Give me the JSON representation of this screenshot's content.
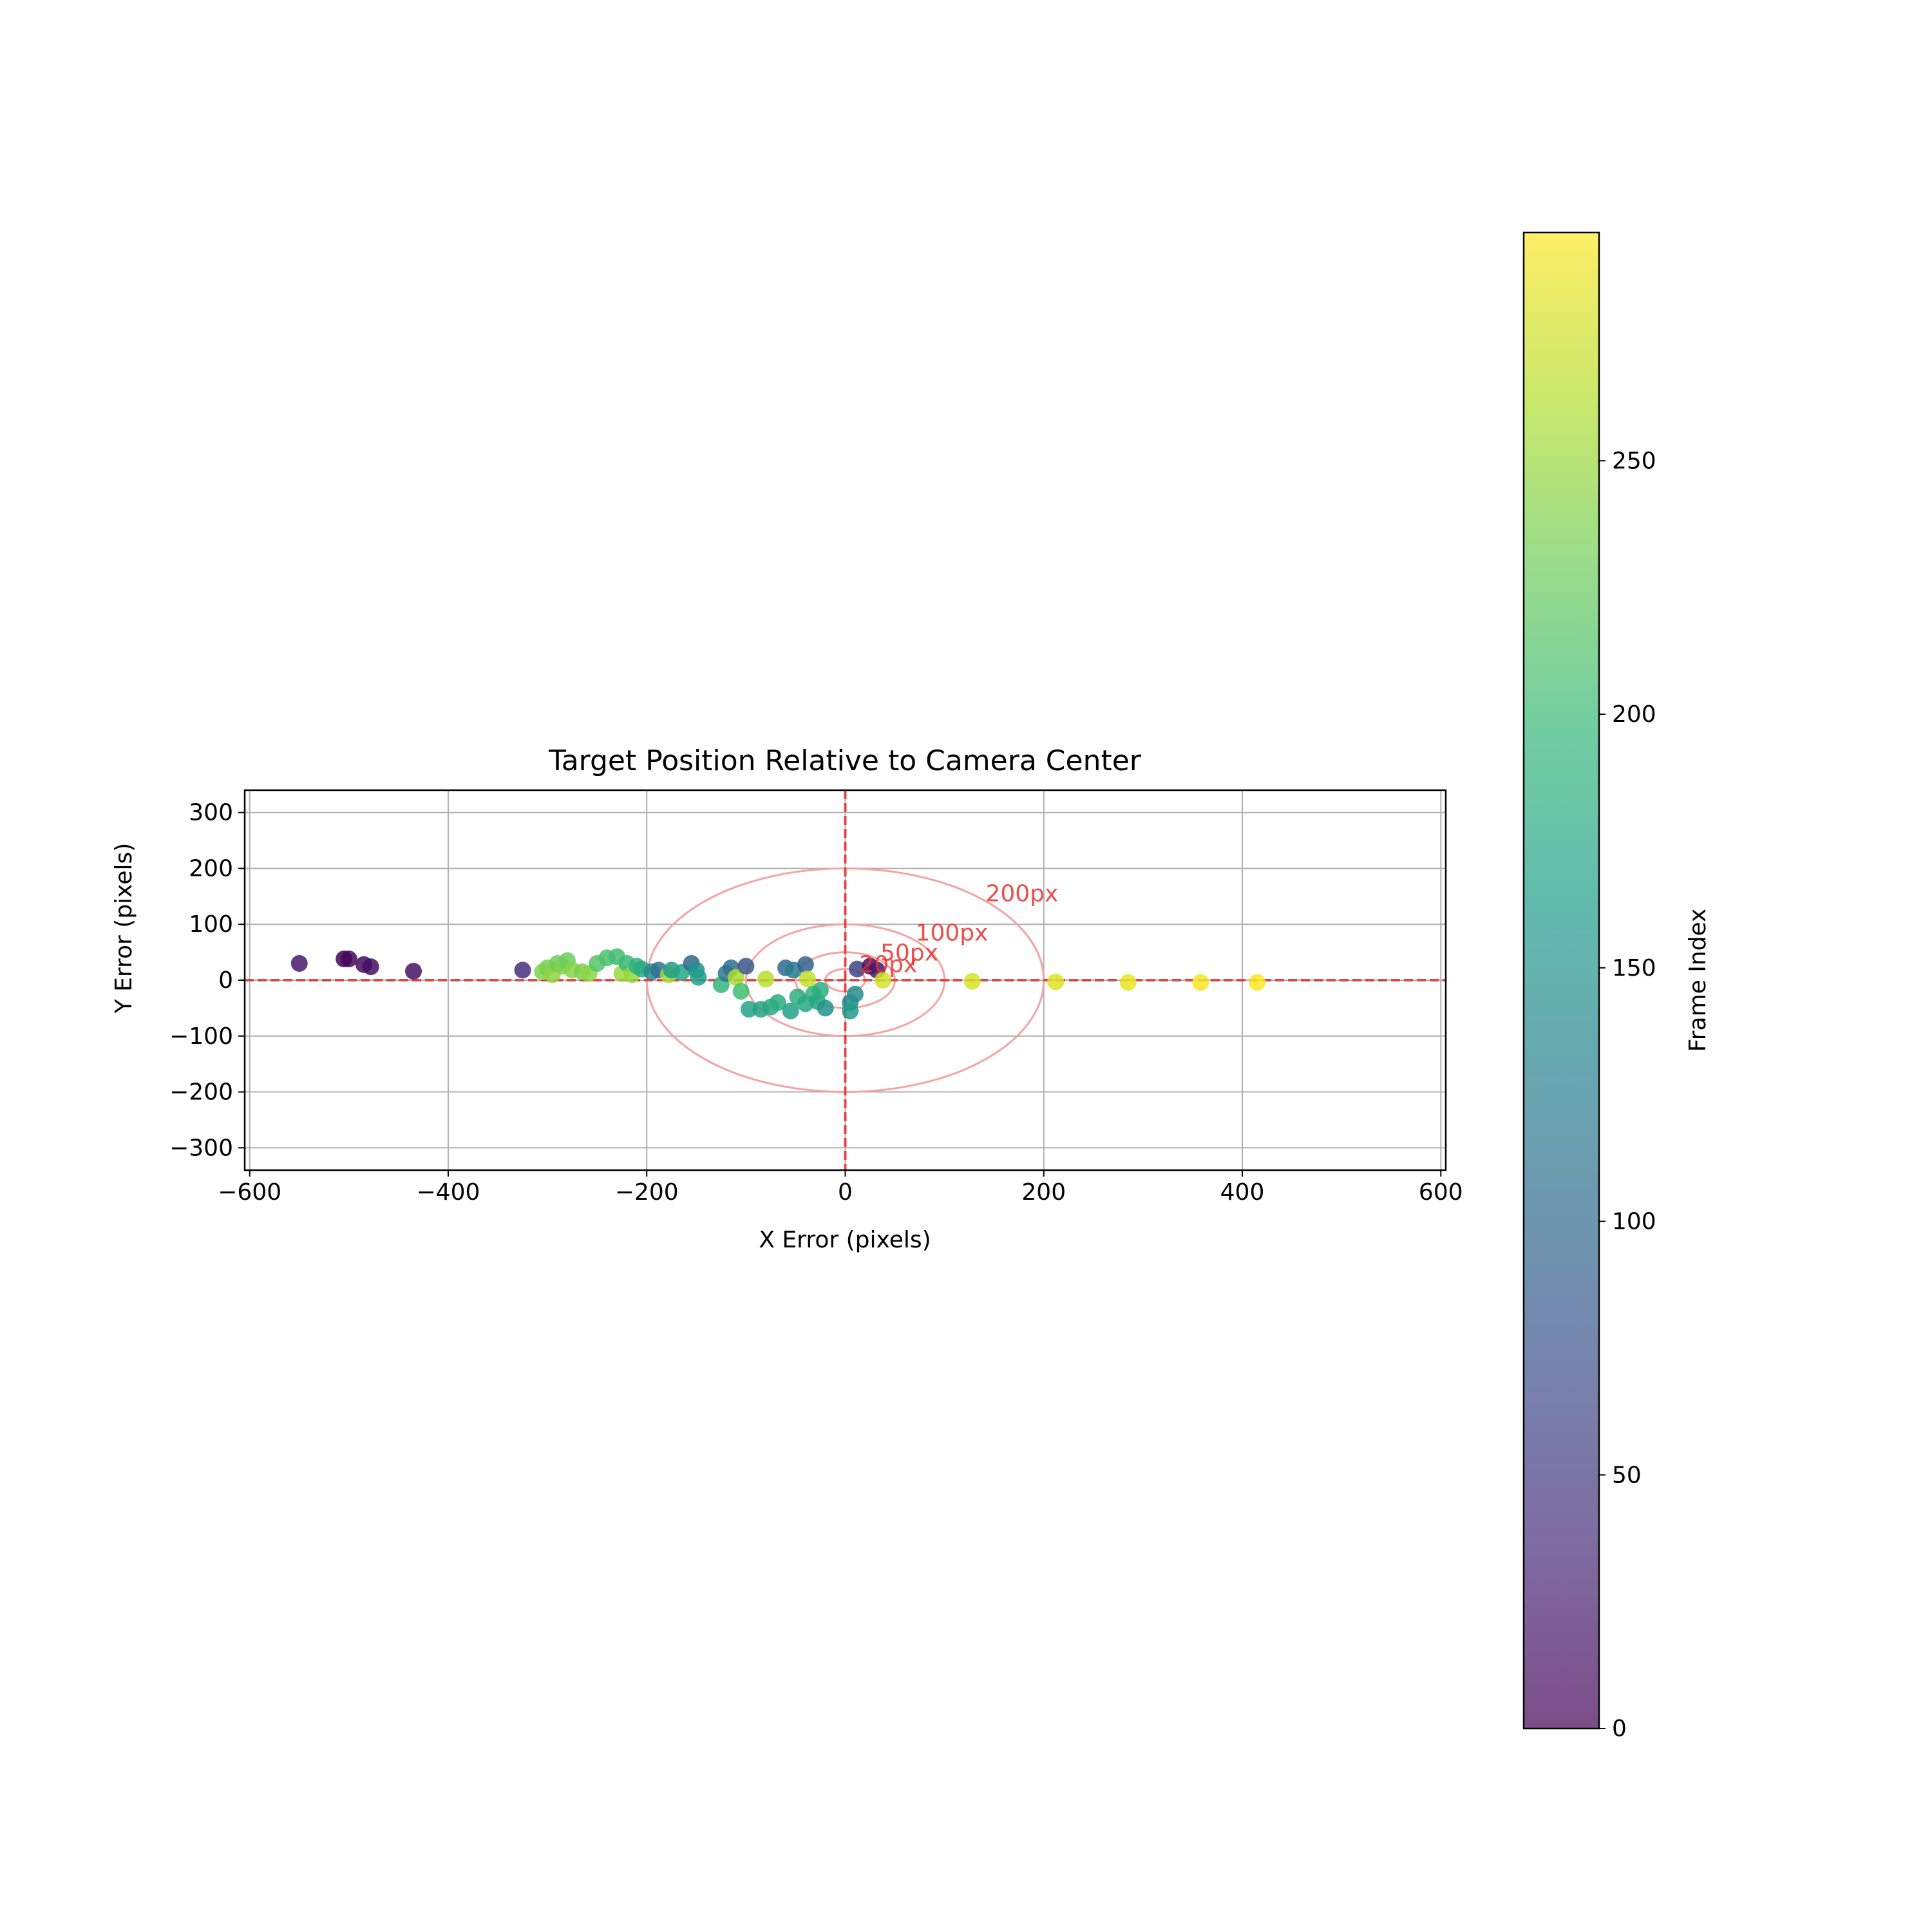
{
  "chart_data": {
    "type": "scatter",
    "title": "Target Position Relative to Camera Center",
    "xlabel": "X Error (pixels)",
    "ylabel": "Y Error (pixels)",
    "xlim": [
      -605,
      605
    ],
    "ylim": [
      -340,
      340
    ],
    "xticks": [
      -600,
      -400,
      -200,
      0,
      200,
      400,
      600
    ],
    "yticks": [
      -300,
      -200,
      -100,
      0,
      100,
      200,
      300
    ],
    "grid": true,
    "reference_lines": {
      "x": 0,
      "y": 0,
      "color": "#e8302e",
      "style": "dashed"
    },
    "circles": [
      {
        "radius": 20,
        "label": "20px"
      },
      {
        "radius": 50,
        "label": "50px"
      },
      {
        "radius": 100,
        "label": "100px"
      },
      {
        "radius": 200,
        "label": "200px"
      }
    ],
    "colorbar": {
      "label": "Frame Index",
      "range": [
        0,
        295
      ],
      "ticks": [
        0,
        50,
        100,
        150,
        200,
        250
      ],
      "colormap": "viridis"
    },
    "points": [
      {
        "x": -550,
        "y": 30,
        "frame": 20
      },
      {
        "x": -505,
        "y": 38,
        "frame": 3
      },
      {
        "x": -500,
        "y": 38,
        "frame": 5
      },
      {
        "x": -485,
        "y": 28,
        "frame": 8
      },
      {
        "x": -478,
        "y": 24,
        "frame": 12
      },
      {
        "x": -435,
        "y": 16,
        "frame": 15
      },
      {
        "x": -325,
        "y": 18,
        "frame": 40
      },
      {
        "x": -305,
        "y": 15,
        "frame": 240
      },
      {
        "x": -300,
        "y": 22,
        "frame": 235
      },
      {
        "x": -295,
        "y": 10,
        "frame": 245
      },
      {
        "x": -290,
        "y": 30,
        "frame": 230
      },
      {
        "x": -285,
        "y": 25,
        "frame": 238
      },
      {
        "x": -280,
        "y": 35,
        "frame": 228
      },
      {
        "x": -275,
        "y": 18,
        "frame": 242
      },
      {
        "x": -265,
        "y": 15,
        "frame": 236
      },
      {
        "x": -258,
        "y": 12,
        "frame": 244
      },
      {
        "x": -250,
        "y": 30,
        "frame": 215
      },
      {
        "x": -240,
        "y": 40,
        "frame": 210
      },
      {
        "x": -230,
        "y": 42,
        "frame": 205
      },
      {
        "x": -225,
        "y": 12,
        "frame": 250
      },
      {
        "x": -220,
        "y": 30,
        "frame": 200
      },
      {
        "x": -215,
        "y": 10,
        "frame": 248
      },
      {
        "x": -210,
        "y": 25,
        "frame": 190
      },
      {
        "x": -205,
        "y": 20,
        "frame": 180
      },
      {
        "x": -195,
        "y": 15,
        "frame": 140
      },
      {
        "x": -188,
        "y": 18,
        "frame": 110
      },
      {
        "x": -178,
        "y": 10,
        "frame": 255
      },
      {
        "x": -175,
        "y": 18,
        "frame": 160
      },
      {
        "x": -165,
        "y": 14,
        "frame": 175
      },
      {
        "x": -155,
        "y": 30,
        "frame": 95
      },
      {
        "x": -150,
        "y": 18,
        "frame": 150
      },
      {
        "x": -148,
        "y": 5,
        "frame": 165
      },
      {
        "x": -125,
        "y": -8,
        "frame": 195
      },
      {
        "x": -120,
        "y": 12,
        "frame": 120
      },
      {
        "x": -115,
        "y": 22,
        "frame": 105
      },
      {
        "x": -110,
        "y": 5,
        "frame": 258
      },
      {
        "x": -105,
        "y": -20,
        "frame": 205
      },
      {
        "x": -100,
        "y": 25,
        "frame": 80
      },
      {
        "x": -97,
        "y": -52,
        "frame": 170
      },
      {
        "x": -85,
        "y": -52,
        "frame": 172
      },
      {
        "x": -80,
        "y": 2,
        "frame": 262
      },
      {
        "x": -75,
        "y": -48,
        "frame": 178
      },
      {
        "x": -68,
        "y": -40,
        "frame": 182
      },
      {
        "x": -60,
        "y": 22,
        "frame": 100
      },
      {
        "x": -55,
        "y": -55,
        "frame": 168
      },
      {
        "x": -52,
        "y": 18,
        "frame": 125
      },
      {
        "x": -48,
        "y": -30,
        "frame": 185
      },
      {
        "x": -40,
        "y": -42,
        "frame": 176
      },
      {
        "x": -40,
        "y": 28,
        "frame": 90
      },
      {
        "x": -38,
        "y": 2,
        "frame": 268
      },
      {
        "x": -32,
        "y": -25,
        "frame": 188
      },
      {
        "x": -28,
        "y": -38,
        "frame": 174
      },
      {
        "x": -25,
        "y": -18,
        "frame": 186
      },
      {
        "x": -20,
        "y": -50,
        "frame": 150
      },
      {
        "x": 5,
        "y": -40,
        "frame": 140
      },
      {
        "x": 5,
        "y": -55,
        "frame": 160
      },
      {
        "x": 10,
        "y": -25,
        "frame": 145
      },
      {
        "x": 12,
        "y": 20,
        "frame": 60
      },
      {
        "x": 25,
        "y": 25,
        "frame": 10
      },
      {
        "x": 32,
        "y": 18,
        "frame": 20
      },
      {
        "x": 38,
        "y": 0,
        "frame": 275
      },
      {
        "x": 128,
        "y": -2,
        "frame": 278
      },
      {
        "x": 212,
        "y": -3,
        "frame": 282
      },
      {
        "x": 285,
        "y": -4,
        "frame": 286
      },
      {
        "x": 358,
        "y": -4,
        "frame": 292
      },
      {
        "x": 415,
        "y": -4,
        "frame": 295
      }
    ]
  }
}
